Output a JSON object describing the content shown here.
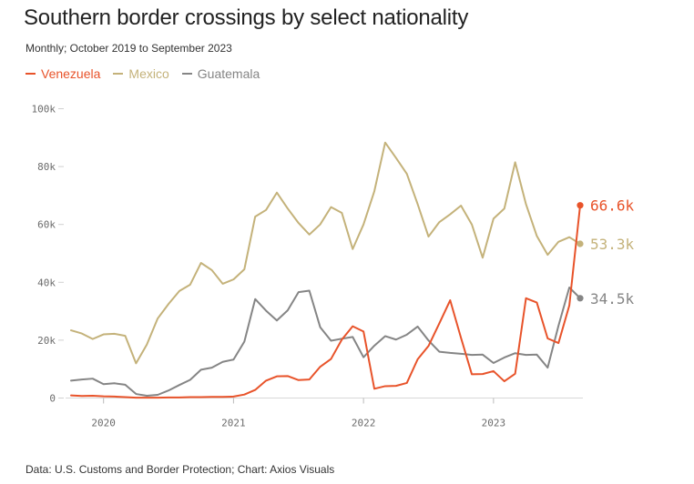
{
  "chart_data": {
    "type": "line",
    "title": "Southern border crossings by select nationality",
    "subtitle": "Monthly; October 2019 to September 2023",
    "source": "Data: U.S. Customs and Border Protection; Chart: Axios Visuals",
    "ylim": [
      0,
      100000
    ],
    "y_ticks": [
      0,
      20000,
      40000,
      60000,
      80000,
      100000
    ],
    "y_tick_labels": [
      "0",
      "20k",
      "40k",
      "60k",
      "80k",
      "100k"
    ],
    "x_ticks": [
      3,
      15,
      27,
      39
    ],
    "x_tick_labels": [
      "2020",
      "2021",
      "2022",
      "2023"
    ],
    "x": [
      "Oct 2019",
      "Nov 2019",
      "Dec 2019",
      "Jan 2020",
      "Feb 2020",
      "Mar 2020",
      "Apr 2020",
      "May 2020",
      "Jun 2020",
      "Jul 2020",
      "Aug 2020",
      "Sep 2020",
      "Oct 2020",
      "Nov 2020",
      "Dec 2020",
      "Jan 2021",
      "Feb 2021",
      "Mar 2021",
      "Apr 2021",
      "May 2021",
      "Jun 2021",
      "Jul 2021",
      "Aug 2021",
      "Sep 2021",
      "Oct 2021",
      "Nov 2021",
      "Dec 2021",
      "Jan 2022",
      "Feb 2022",
      "Mar 2022",
      "Apr 2022",
      "May 2022",
      "Jun 2022",
      "Jul 2022",
      "Aug 2022",
      "Sep 2022",
      "Oct 2022",
      "Nov 2022",
      "Dec 2022",
      "Jan 2023",
      "Feb 2023",
      "Mar 2023",
      "Apr 2023",
      "May 2023",
      "Jun 2023",
      "Jul 2023",
      "Aug 2023",
      "Sep 2023"
    ],
    "grid": false,
    "series": [
      {
        "name": "Venezuela",
        "color": "#e8532a",
        "end_label": "66.6k",
        "values": [
          900,
          700,
          800,
          600,
          500,
          300,
          100,
          100,
          100,
          200,
          200,
          300,
          300,
          400,
          400,
          500,
          1200,
          2800,
          6000,
          7500,
          7600,
          6200,
          6400,
          10800,
          13500,
          20200,
          24800,
          23000,
          3200,
          4100,
          4200,
          5200,
          13400,
          18000,
          25800,
          33800,
          20800,
          8200,
          8300,
          9300,
          5800,
          8400,
          34500,
          33000,
          20600,
          19000,
          32000,
          66600
        ]
      },
      {
        "name": "Mexico",
        "color": "#c4b27a",
        "end_label": "53.3k",
        "values": [
          23400,
          22300,
          20400,
          22000,
          22200,
          21500,
          12000,
          18500,
          27500,
          32500,
          37000,
          39200,
          46700,
          44200,
          39500,
          41000,
          44500,
          62700,
          65000,
          71000,
          65500,
          60500,
          56500,
          60000,
          66000,
          64000,
          51500,
          60000,
          71500,
          88300,
          83000,
          77500,
          67000,
          55800,
          60800,
          63500,
          66500,
          60000,
          48500,
          62000,
          65500,
          81500,
          67000,
          56000,
          49500,
          54000,
          55600,
          53300
        ]
      },
      {
        "name": "Guatemala",
        "color": "#858585",
        "end_label": "34.5k",
        "values": [
          6000,
          6400,
          6700,
          4800,
          5100,
          4600,
          1400,
          800,
          1100,
          2600,
          4500,
          6300,
          9800,
          10500,
          12500,
          13300,
          19500,
          34200,
          30200,
          26800,
          30300,
          36600,
          37100,
          24500,
          19800,
          20500,
          21100,
          14100,
          18100,
          21400,
          20200,
          21900,
          24700,
          19900,
          16000,
          15600,
          15300,
          14900,
          15000,
          12100,
          14000,
          15500,
          14900,
          15000,
          10500,
          25000,
          38200,
          34500
        ]
      }
    ]
  }
}
